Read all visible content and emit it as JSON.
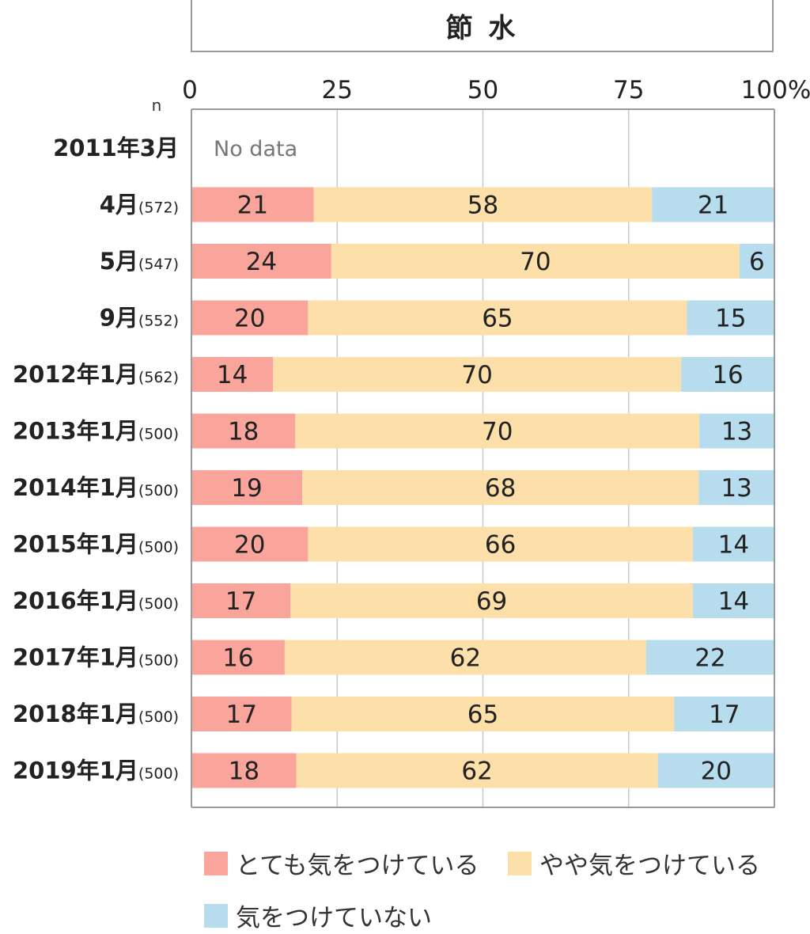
{
  "title": "節 水",
  "n_label": "n",
  "colors": {
    "very": "#f9a59b",
    "somewhat": "#fcdfa9",
    "none": "#b6dcee",
    "grid": "#c8c8c8",
    "frame": "#9a9a9a"
  },
  "chart_data": {
    "type": "bar",
    "orientation": "horizontal",
    "stacked": true,
    "title": "節 水",
    "xlim": [
      0,
      100
    ],
    "x_ticks": [
      "0",
      "25",
      "50",
      "75",
      "100%"
    ],
    "grid": true,
    "legend_position": "bottom",
    "categories": [
      {
        "label": "2011年3月",
        "n": ""
      },
      {
        "label": "4月",
        "n": "(572)"
      },
      {
        "label": "5月",
        "n": "(547)"
      },
      {
        "label": "9月",
        "n": "(552)"
      },
      {
        "label": "2012年1月",
        "n": "(562)"
      },
      {
        "label": "2013年1月",
        "n": "(500)"
      },
      {
        "label": "2014年1月",
        "n": "(500)"
      },
      {
        "label": "2015年1月",
        "n": "(500)"
      },
      {
        "label": "2016年1月",
        "n": "(500)"
      },
      {
        "label": "2017年1月",
        "n": "(500)"
      },
      {
        "label": "2018年1月",
        "n": "(500)"
      },
      {
        "label": "2019年1月",
        "n": "(500)"
      }
    ],
    "no_data_label": "No data",
    "series": [
      {
        "name": "とても気をつけている",
        "key": "very",
        "values": [
          null,
          21,
          24,
          20,
          14,
          18,
          19,
          20,
          17,
          16,
          17,
          18
        ]
      },
      {
        "name": "やや気をつけている",
        "key": "somewhat",
        "values": [
          null,
          58,
          70,
          65,
          70,
          70,
          68,
          66,
          69,
          62,
          65,
          62
        ]
      },
      {
        "name": "気をつけていない",
        "key": "none",
        "values": [
          null,
          21,
          6,
          15,
          16,
          13,
          13,
          14,
          14,
          22,
          17,
          20
        ]
      }
    ]
  }
}
